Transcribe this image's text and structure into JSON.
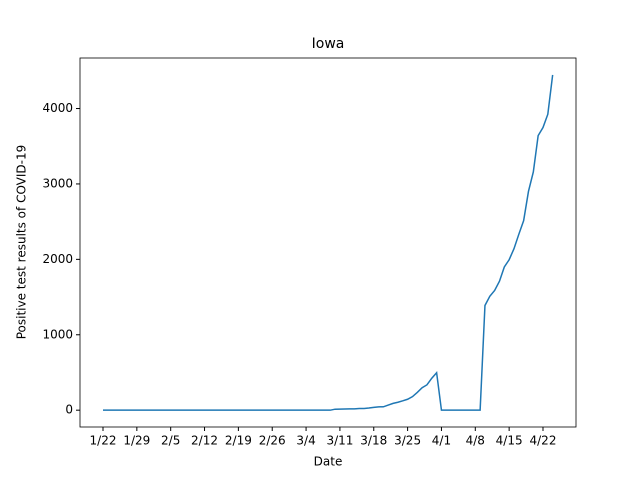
{
  "chart_data": {
    "type": "line",
    "title": "Iowa",
    "x_label": "Date",
    "y_label": "Positive test results of COVID-19",
    "categories": [
      "1/22",
      null,
      null,
      null,
      null,
      null,
      null,
      "1/29",
      null,
      null,
      null,
      null,
      null,
      null,
      "2/5",
      null,
      null,
      null,
      null,
      null,
      null,
      "2/12",
      null,
      null,
      null,
      null,
      null,
      null,
      "2/19",
      null,
      null,
      null,
      null,
      null,
      null,
      "2/26",
      null,
      null,
      null,
      null,
      null,
      null,
      "3/4",
      null,
      null,
      null,
      null,
      null,
      null,
      "3/11",
      null,
      null,
      null,
      null,
      null,
      null,
      "3/18",
      null,
      null,
      null,
      null,
      null,
      null,
      "3/25",
      null,
      null,
      null,
      null,
      null,
      null,
      "4/1",
      null,
      null,
      null,
      null,
      null,
      null,
      "4/8",
      null,
      null,
      null,
      null,
      null,
      null,
      "4/15",
      null,
      null,
      null,
      null,
      null,
      null,
      "4/22",
      null,
      null
    ],
    "values": [
      0,
      0,
      0,
      0,
      0,
      0,
      0,
      0,
      0,
      0,
      0,
      0,
      0,
      0,
      0,
      0,
      0,
      0,
      0,
      0,
      0,
      0,
      0,
      0,
      0,
      0,
      0,
      0,
      0,
      0,
      0,
      0,
      0,
      0,
      0,
      0,
      0,
      0,
      0,
      0,
      0,
      0,
      0,
      0,
      0,
      0,
      0,
      0,
      13,
      14,
      16,
      17,
      18,
      22,
      23,
      29,
      38,
      44,
      45,
      68,
      90,
      105,
      124,
      145,
      179,
      235,
      298,
      336,
      424,
      497,
      0,
      0,
      0,
      0,
      0,
      0,
      0,
      0,
      0,
      1388,
      1510,
      1587,
      1710,
      1899,
      1995,
      2141,
      2332,
      2513,
      2902,
      3159,
      3641,
      3748,
      3924,
      4445
    ],
    "color": "#1f77b4",
    "ylim": [
      -223,
      4670
    ],
    "yticks": [
      0,
      1000,
      2000,
      3000,
      4000
    ]
  }
}
